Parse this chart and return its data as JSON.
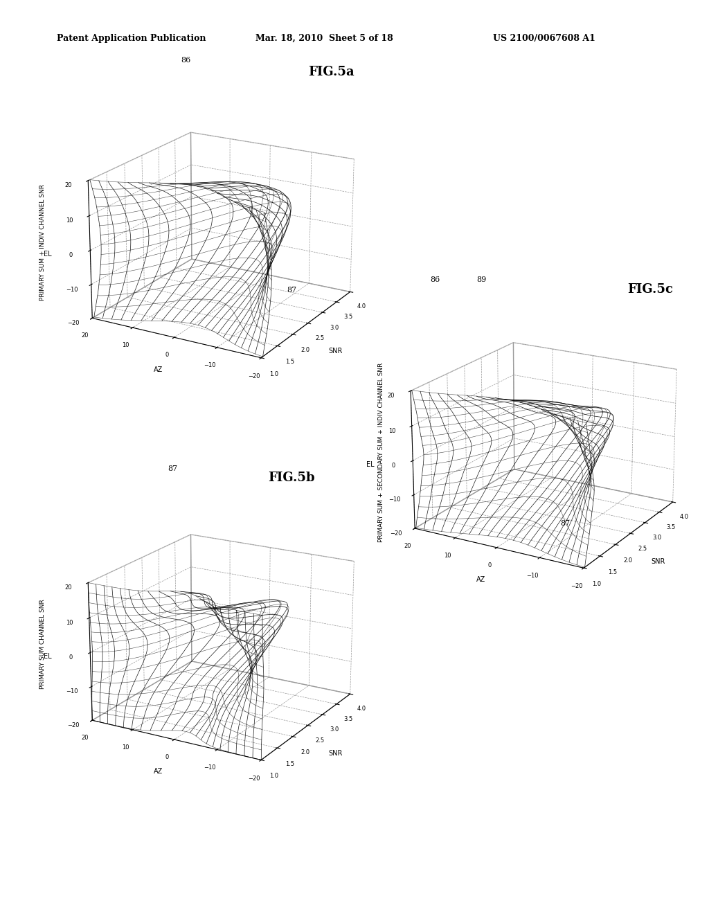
{
  "header_left": "Patent Application Publication",
  "header_center": "Mar. 18, 2010  Sheet 5 of 18",
  "header_right": "US 2100/0067608 A1",
  "fig5a_label": "FIG.5a",
  "fig5b_label": "FIG.5b",
  "fig5c_label": "FIG.5c",
  "fig5a_ylabel": "PRIMARY SUM + INDIV CHANNEL SNR",
  "fig5b_ylabel": "PRIMARY SUM CHANNEL SNR",
  "fig5c_ylabel": "PRIMARY SUM + SECONDARY SUM + INDIV CHANNEL SNR",
  "snr_label": "SNR",
  "az_label": "AZ",
  "el_label": "EL",
  "snr_ticks": [
    1,
    1.5,
    2,
    2.5,
    3,
    3.5,
    4
  ],
  "az_ticks": [
    -20,
    -10,
    0,
    10,
    20
  ],
  "el_ticks": [
    -20,
    -10,
    0,
    10,
    20
  ],
  "ref86": "86",
  "ref87a": "87",
  "ref87b": "87",
  "ref89": "89",
  "bg_color": "#ffffff",
  "line_color": "#000000",
  "view_elev": 20,
  "view_azim": 210,
  "lobe_centers_5a": [
    -15,
    -9,
    -3,
    3,
    9,
    15
  ],
  "lobe_heights_5a": [
    1.0,
    1.4,
    1.8,
    1.8,
    1.4,
    1.0
  ],
  "lobe_centers_5c": [
    -14,
    -8,
    -2,
    2,
    8,
    14
  ],
  "lobe_heights_5c": [
    1.0,
    1.4,
    1.8,
    1.8,
    1.4,
    1.0
  ],
  "n_az_slices": 25,
  "n_el_points": 200,
  "snr_min": 1.0,
  "snr_max": 4.0,
  "az_min": -20,
  "az_max": 20,
  "el_min": -20,
  "el_max": 20
}
